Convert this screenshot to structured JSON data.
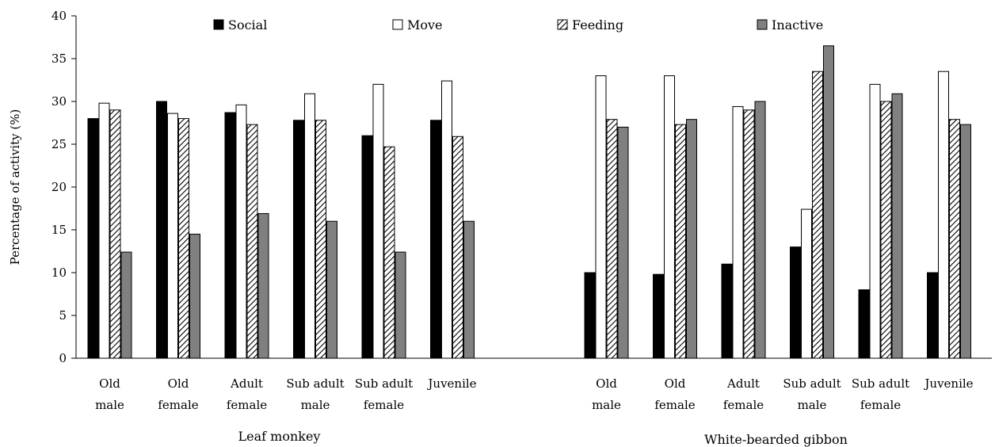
{
  "chart_data": {
    "type": "bar",
    "title": "",
    "ylabel": "Percentage of activity (%)",
    "ylim": [
      0,
      40
    ],
    "yticks": [
      0,
      5,
      10,
      15,
      20,
      25,
      30,
      35,
      40
    ],
    "legend_position": "top",
    "series_styles": {
      "Social": {
        "color": "#000000",
        "pattern": "solid"
      },
      "Move": {
        "color": "#ffffff",
        "pattern": "solid"
      },
      "Feeding": {
        "color": "#ffffff",
        "pattern": "diagonal-hatch"
      },
      "Inactive": {
        "color": "#808080",
        "pattern": "solid"
      }
    },
    "groups": [
      {
        "name": "Leaf monkey",
        "categories": [
          [
            "Old",
            "male"
          ],
          [
            "Old",
            "female"
          ],
          [
            "Adult",
            "female"
          ],
          [
            "Sub adult",
            "male"
          ],
          [
            "Sub adult",
            "female"
          ],
          [
            "Juvenile"
          ]
        ],
        "series": [
          {
            "name": "Social",
            "values": [
              28,
              30,
              28.7,
              27.8,
              26,
              27.8
            ]
          },
          {
            "name": "Move",
            "values": [
              29.8,
              28.6,
              29.6,
              30.9,
              32,
              32.4
            ]
          },
          {
            "name": "Feeding",
            "values": [
              29,
              28,
              27.3,
              27.8,
              24.7,
              25.9
            ]
          },
          {
            "name": "Inactive",
            "values": [
              12.4,
              14.5,
              16.9,
              16,
              12.4,
              16
            ]
          }
        ]
      },
      {
        "name": "White-bearded gibbon",
        "categories": [
          [
            "Old",
            "male"
          ],
          [
            "Old",
            "female"
          ],
          [
            "Adult",
            "female"
          ],
          [
            "Sub adult",
            "male"
          ],
          [
            "Sub adult",
            "female"
          ],
          [
            "Juvenile"
          ]
        ],
        "series": [
          {
            "name": "Social",
            "values": [
              10,
              9.8,
              11,
              13,
              8,
              10
            ]
          },
          {
            "name": "Move",
            "values": [
              33,
              33,
              29.4,
              17.4,
              32,
              33.5
            ]
          },
          {
            "name": "Feeding",
            "values": [
              27.9,
              27.3,
              29,
              33.5,
              30,
              27.9
            ]
          },
          {
            "name": "Inactive",
            "values": [
              27,
              27.9,
              30,
              36.5,
              30.9,
              27.3
            ]
          }
        ]
      }
    ]
  }
}
